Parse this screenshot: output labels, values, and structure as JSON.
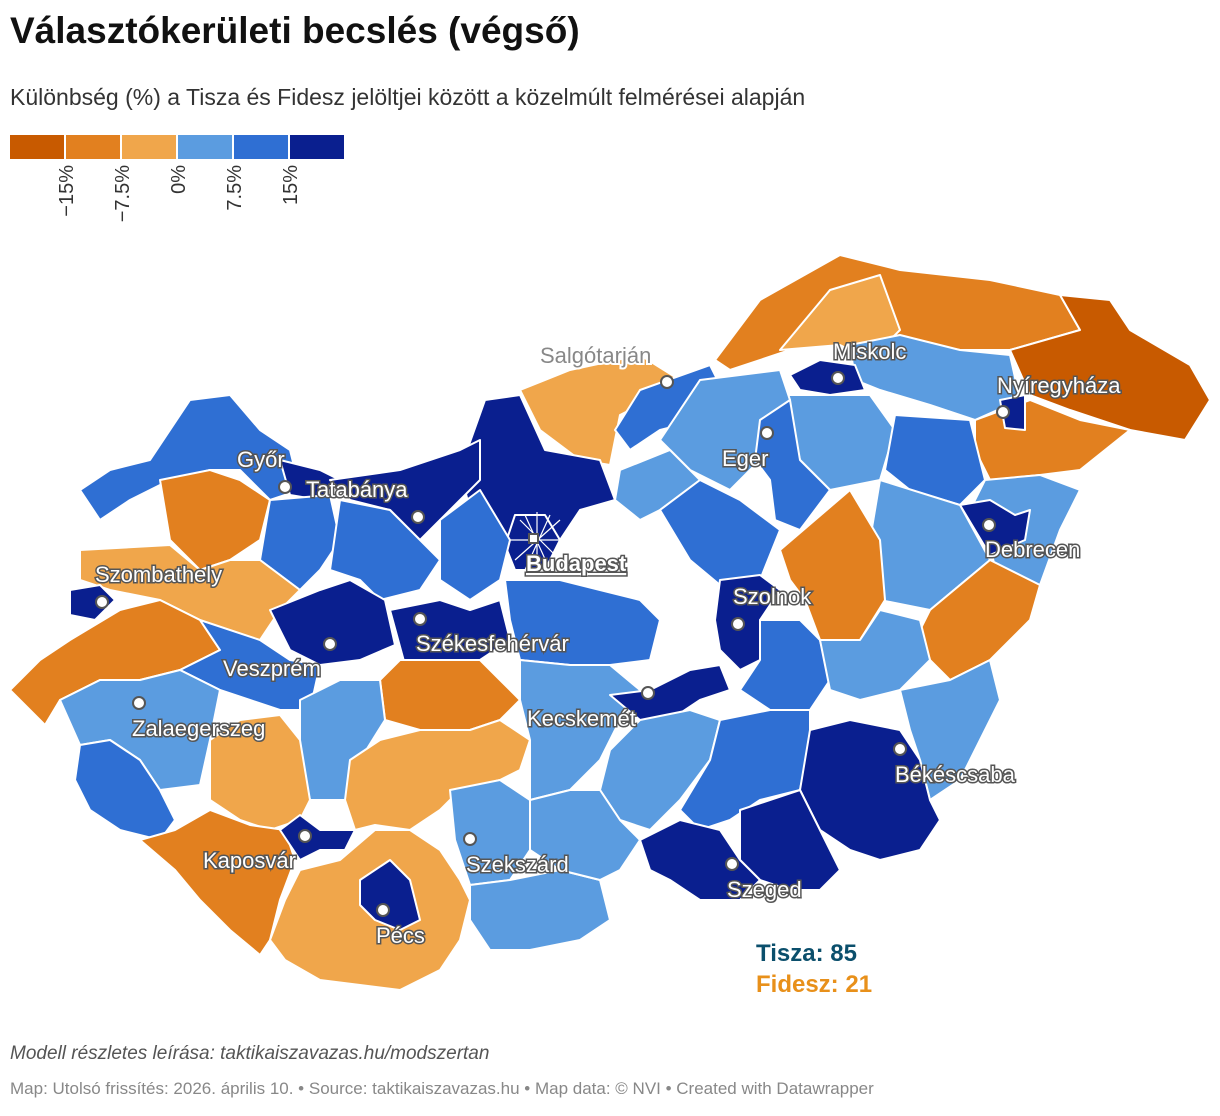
{
  "header": {
    "title": "Választókerületi becslés (végső)",
    "subtitle": "Különbség (%) a Tisza és Fidesz jelöltjei között a közelmúlt felmérései alapján"
  },
  "legend": {
    "colors": [
      "#c85a00",
      "#e2801f",
      "#f0a64b",
      "#5b9ce0",
      "#2f6fd3",
      "#0a1f8f"
    ],
    "ticks": [
      "−15%",
      "−7.5%",
      "0%",
      "7.5%",
      "15%"
    ]
  },
  "map": {
    "colors": {
      "border": "#ffffff",
      "fidesz_strong": "#c85a00",
      "fidesz_mid": "#e2801f",
      "fidesz_light": "#f0a64b",
      "tisza_light": "#5b9ce0",
      "tisza_mid": "#2f6fd3",
      "tisza_strong": "#0a1f8f"
    },
    "capital": "Budapest",
    "cities": [
      "Salgótarján",
      "Miskolc",
      "Nyíregyháza",
      "Győr",
      "Tatabánya",
      "Eger",
      "Debrecen",
      "Szombathely",
      "Szolnok",
      "Székesfehérvár",
      "Veszprém",
      "Kecskemét",
      "Zalaegerszeg",
      "Békéscsaba",
      "Kaposvár",
      "Szekszárd",
      "Szeged",
      "Pécs"
    ]
  },
  "results": {
    "tisza": "Tisza: 85",
    "fidesz": "Fidesz: 21"
  },
  "footer": {
    "note": "Modell részletes leírása: taktikaiszavazas.hu/modszertan",
    "credits": "Map: Utolsó frissítés: 2026. április 10. • Source: taktikaiszavazas.hu • Map data: © NVI  • Created with Datawrapper"
  }
}
